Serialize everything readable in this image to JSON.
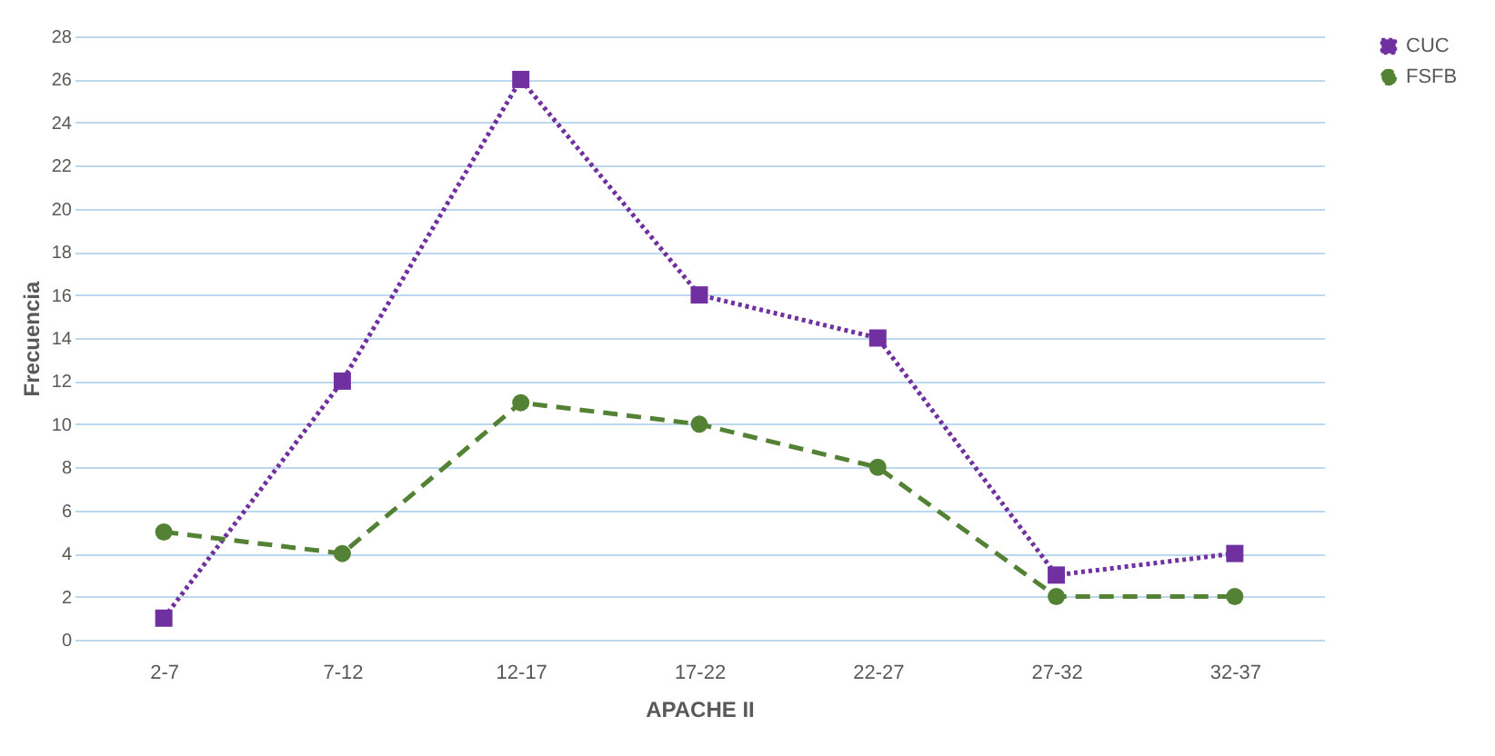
{
  "chart_data": {
    "type": "line",
    "xlabel": "APACHE II",
    "ylabel": "Frecuencia",
    "categories": [
      "2-7",
      "7-12",
      "12-17",
      "17-22",
      "22-27",
      "27-32",
      "32-37"
    ],
    "series": [
      {
        "name": "CUC",
        "color": "#7030a0",
        "values": [
          1,
          12,
          26,
          16,
          14,
          3,
          4
        ],
        "marker": "square",
        "line_style": "dotted"
      },
      {
        "name": "FSFB",
        "color": "#548235",
        "values": [
          5,
          4,
          11,
          10,
          8,
          2,
          2
        ],
        "marker": "circle",
        "line_style": "dashed"
      }
    ],
    "ylim": [
      0,
      28
    ],
    "yticks": [
      0,
      2,
      4,
      6,
      8,
      10,
      12,
      14,
      16,
      18,
      20,
      22,
      24,
      26,
      28
    ],
    "grid": "y",
    "legend": "right"
  }
}
